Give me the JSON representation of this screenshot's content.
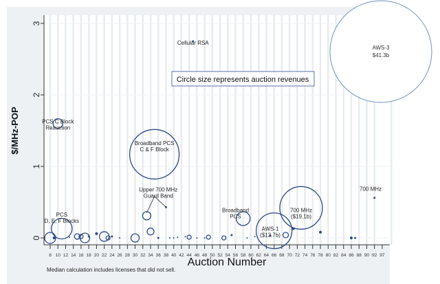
{
  "chart_data": {
    "type": "scatter",
    "ylabel": "$/MHz-POP",
    "xlabel": "Auction Number",
    "ylim": [
      0,
      3
    ],
    "yticks": [
      "0",
      "1",
      "2",
      "3"
    ],
    "xticks": [
      "8",
      "10",
      "12",
      "14",
      "16",
      "18",
      "20",
      "22",
      "24",
      "26",
      "28",
      "30",
      "32",
      "34",
      "36",
      "38",
      "40",
      "42",
      "44",
      "46",
      "48",
      "50",
      "52",
      "54",
      "56",
      "58",
      "60",
      "62",
      "64",
      "66",
      "68",
      "70",
      "72",
      "74",
      "76",
      "78",
      "80",
      "82",
      "84",
      "86",
      "88",
      "90",
      "92",
      "97"
    ],
    "grid": "vertical",
    "legend_note": "Circle size represents auction revenues",
    "footnote": "Median calculation includes licenses that did not sell.",
    "marker_color": "#2e4a86",
    "points": [
      {
        "x": 8,
        "y": 0.0,
        "size": 8
      },
      {
        "x": 9,
        "y": 0.0,
        "size": 2
      },
      {
        "x": 10,
        "y": 1.6,
        "size": 7
      },
      {
        "x": 11,
        "y": 0.13,
        "size": 15
      },
      {
        "x": 13,
        "y": 0.01,
        "size": 1
      },
      {
        "x": 15,
        "y": 0.02,
        "size": 4
      },
      {
        "x": 16,
        "y": 0.02,
        "size": 3
      },
      {
        "x": 17,
        "y": 0.0,
        "size": 7
      },
      {
        "x": 18,
        "y": 0.02,
        "size": 1.5
      },
      {
        "x": 20,
        "y": 0.06,
        "size": 2
      },
      {
        "x": 22,
        "y": 0.02,
        "size": 7
      },
      {
        "x": 23,
        "y": 0.0,
        "size": 3
      },
      {
        "x": 24,
        "y": 0.02,
        "size": 1.5
      },
      {
        "x": 26,
        "y": 0.0,
        "size": 1
      },
      {
        "x": 30,
        "y": 0.0,
        "size": 6
      },
      {
        "x": 33,
        "y": 0.31,
        "size": 6
      },
      {
        "x": 34,
        "y": 0.09,
        "size": 5
      },
      {
        "x": 35,
        "y": 1.17,
        "size": 36
      },
      {
        "x": 36,
        "y": 0.0,
        "size": 1.5
      },
      {
        "x": 38,
        "y": 0.43,
        "size": 1.5
      },
      {
        "x": 39,
        "y": 0.0,
        "size": 0.8
      },
      {
        "x": 40,
        "y": 0.0,
        "size": 1
      },
      {
        "x": 41,
        "y": 0.01,
        "size": 1
      },
      {
        "x": 43,
        "y": 0.02,
        "size": 1
      },
      {
        "x": 44,
        "y": 0.01,
        "size": 3
      },
      {
        "x": 45,
        "y": 2.75,
        "size": 1.5
      },
      {
        "x": 46,
        "y": 0.0,
        "size": 1
      },
      {
        "x": 48,
        "y": 0.0,
        "size": 1
      },
      {
        "x": 49,
        "y": 0.01,
        "size": 3
      },
      {
        "x": 53,
        "y": 0.0,
        "size": 3
      },
      {
        "x": 55,
        "y": 0.04,
        "size": 1.5
      },
      {
        "x": 58,
        "y": 0.27,
        "size": 10
      },
      {
        "x": 59,
        "y": 0.0,
        "size": 1
      },
      {
        "x": 61,
        "y": 0.02,
        "size": 1
      },
      {
        "x": 65,
        "y": 0.03,
        "size": 1.5
      },
      {
        "x": 66,
        "y": 0.1,
        "size": 26
      },
      {
        "x": 69,
        "y": 0.04,
        "size": 4
      },
      {
        "x": 71,
        "y": 0.13,
        "size": 2
      },
      {
        "x": 73,
        "y": 0.42,
        "size": 31
      },
      {
        "x": 78,
        "y": 0.08,
        "size": 2
      },
      {
        "x": 86,
        "y": 0.0,
        "size": 2
      },
      {
        "x": 87,
        "y": 0.0,
        "size": 1.5
      },
      {
        "x": 92,
        "y": 0.56,
        "size": 1.5
      }
    ],
    "highlight": {
      "x": 97,
      "y": 2.6,
      "size": 74,
      "label": [
        "AWS-3",
        "$41.3b"
      ],
      "color": "#6f8fc4"
    },
    "annotations": [
      {
        "lines": [
          "Cellular RSA"
        ],
        "x": 45,
        "y": 2.7
      },
      {
        "lines": [
          "PCS C Block",
          "Reauction"
        ],
        "x": 10,
        "y": 1.6
      },
      {
        "lines": [
          "Broadband PCS",
          "C & F Block"
        ],
        "x": 35,
        "y": 1.3
      },
      {
        "lines": [
          "Upper 700 MHz",
          "Guard Band"
        ],
        "x": 36,
        "y": 0.65
      },
      {
        "lines": [
          "PCS",
          "D, E, F Blocks"
        ],
        "x": 11,
        "y": 0.3
      },
      {
        "lines": [
          "Broadband",
          "PCS"
        ],
        "x": 56,
        "y": 0.36
      },
      {
        "lines": [
          "AWS-1",
          "($13.7b)"
        ],
        "x": 65,
        "y": 0.1
      },
      {
        "lines": [
          "700 MHz",
          "($19.1b)"
        ],
        "x": 73,
        "y": 0.36
      },
      {
        "lines": [
          "700 MHz"
        ],
        "x": 91,
        "y": 0.66
      }
    ]
  }
}
